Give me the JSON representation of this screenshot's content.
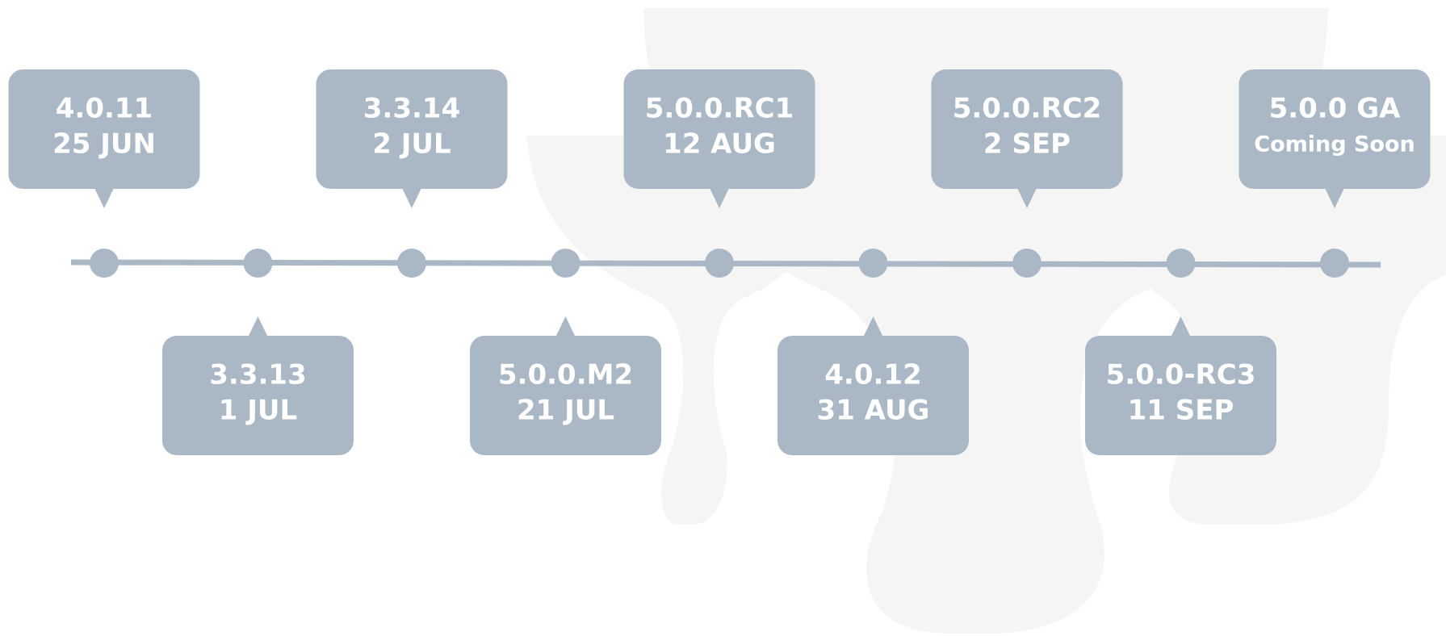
{
  "events": [
    {
      "version": "4.0.11",
      "date": "25 JUN"
    },
    {
      "version": "3.3.13",
      "date": "1 JUL"
    },
    {
      "version": "3.3.14",
      "date": "2 JUL"
    },
    {
      "version": "5.0.0.M2",
      "date": "21 JUL"
    },
    {
      "version": "5.0.0.RC1",
      "date": "12 AUG"
    },
    {
      "version": "4.0.12",
      "date": "31 AUG"
    },
    {
      "version": "5.0.0.RC2",
      "date": "2 SEP"
    },
    {
      "version": "5.0.0-RC3",
      "date": "11 SEP"
    },
    {
      "version": "5.0.0 GA",
      "date": "Coming Soon"
    }
  ]
}
